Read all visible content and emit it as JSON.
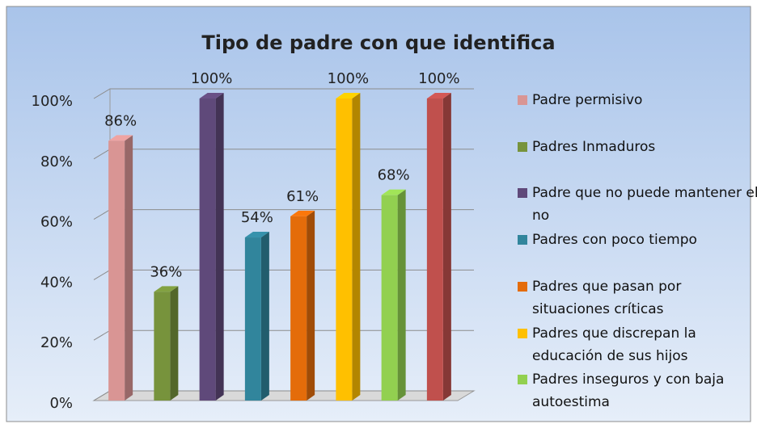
{
  "chart_data": {
    "type": "bar",
    "title": "Tipo de padre con que identifica",
    "series": [
      {
        "name": "Padre permisivo",
        "color": "#D99594",
        "values": [
          86
        ],
        "value_labels": [
          "86%"
        ]
      },
      {
        "name": "Padres Inmaduros",
        "color": "#77933C",
        "values": [
          36
        ],
        "value_labels": [
          "36%"
        ]
      },
      {
        "name": "Padre que no puede mantener el no",
        "color": "#5F497A",
        "values": [
          100
        ],
        "value_labels": [
          "100%"
        ]
      },
      {
        "name": "Padres con poco tiempo",
        "color": "#31859C",
        "values": [
          54
        ],
        "value_labels": [
          "54%"
        ]
      },
      {
        "name": "Padres que pasan por situaciones críticas",
        "color": "#E46C0A",
        "values": [
          61
        ],
        "value_labels": [
          "61%"
        ]
      },
      {
        "name": "Padres que discrepan la educación de sus hijos",
        "color": "#FFC000",
        "values": [
          100
        ],
        "value_labels": [
          "100%"
        ]
      },
      {
        "name": "Padres inseguros y con baja autoestima",
        "color": "#92D050",
        "values": [
          68
        ],
        "value_labels": [
          "68%"
        ]
      },
      {
        "name": null,
        "color": "#C0504D",
        "values": [
          100
        ],
        "value_labels": [
          "100%"
        ]
      }
    ],
    "ylim": [
      0,
      100
    ],
    "yticks": [
      {
        "value": 0,
        "label": "0%"
      },
      {
        "value": 20,
        "label": "20%"
      },
      {
        "value": 40,
        "label": "40%"
      },
      {
        "value": 60,
        "label": "60%"
      },
      {
        "value": 80,
        "label": "80%"
      },
      {
        "value": 100,
        "label": "100%"
      }
    ],
    "grid": true,
    "legend": "right"
  }
}
